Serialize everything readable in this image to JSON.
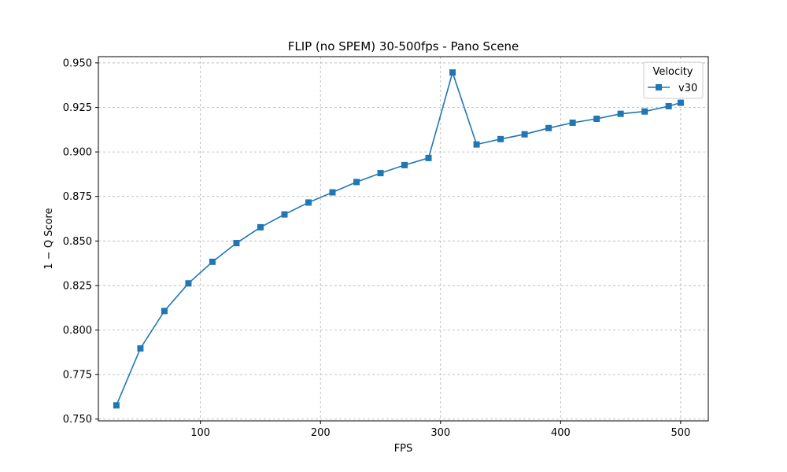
{
  "chart_data": {
    "type": "line",
    "title": "FLIP (no SPEM) 30-500fps - Pano Scene",
    "xlabel": "FPS",
    "ylabel": "1 − Q Score",
    "xlim": [
      15,
      523
    ],
    "ylim": [
      0.749,
      0.9535
    ],
    "xticks": [
      100,
      200,
      300,
      400,
      500
    ],
    "yticks": [
      0.75,
      0.775,
      0.8,
      0.825,
      0.85,
      0.875,
      0.9,
      0.925,
      0.95
    ],
    "grid": true,
    "legend": {
      "title": "Velocity",
      "placement": "top-right"
    },
    "x": [
      30,
      50,
      70,
      90,
      110,
      130,
      150,
      170,
      190,
      210,
      230,
      250,
      270,
      290,
      310,
      330,
      350,
      370,
      390,
      410,
      430,
      450,
      470,
      490,
      500
    ],
    "series": [
      {
        "name": "v30",
        "color": "#1f77b4",
        "marker": "square",
        "values": [
          0.7577,
          0.7897,
          0.8107,
          0.8262,
          0.8383,
          0.8488,
          0.8577,
          0.8649,
          0.8716,
          0.8773,
          0.8831,
          0.8881,
          0.8926,
          0.8966,
          0.9446,
          0.9042,
          0.9072,
          0.9099,
          0.9134,
          0.9164,
          0.9186,
          0.9214,
          0.9227,
          0.9257,
          0.9276
        ]
      }
    ]
  }
}
